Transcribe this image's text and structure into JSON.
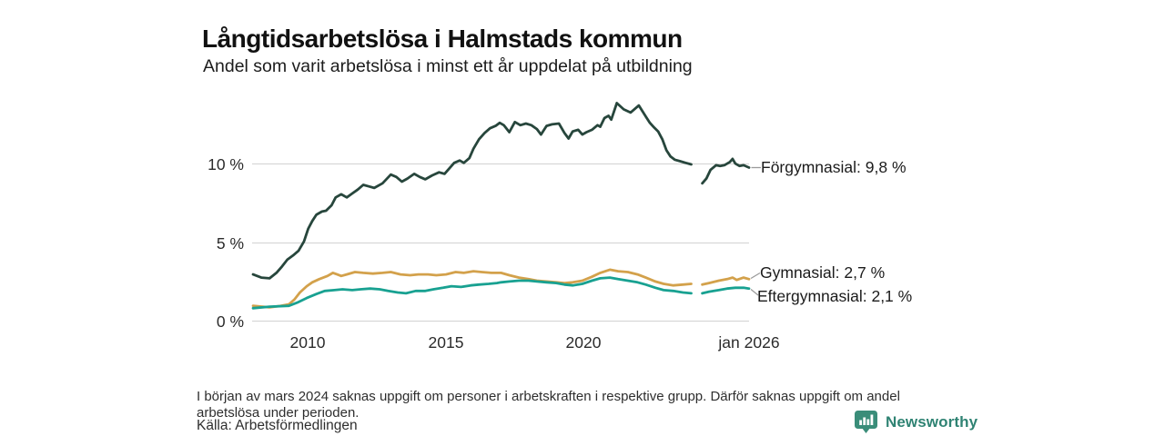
{
  "header": {
    "title": "Långtidsarbetslösa i Halmstads kommun",
    "subtitle": "Andel som varit arbetslösa i minst ett år uppdelat på utbildning"
  },
  "footnote": "I början av mars 2024 saknas uppgift om personer i arbetskraften i respektive grupp. Därför saknas uppgift om andel arbetslösa under perioden.",
  "source": "Källa: Arbetsförmedlingen",
  "brand": {
    "name": "Newsworthy",
    "color": "#2f8373",
    "icon": "bar-chart-bubble-icon"
  },
  "chart_data": {
    "type": "line",
    "title": "Långtidsarbetslösa i Halmstads kommun",
    "subtitle": "Andel som varit arbetslösa i minst ett år uppdelat på utbildning",
    "unit": "%",
    "xlim": [
      2008,
      2026.2
    ],
    "ylim": [
      0,
      14.5
    ],
    "grid": "horizontal-only",
    "legend_position": "end-of-line-labels-right",
    "x_ticks": [
      {
        "v": 2010,
        "label": "2010"
      },
      {
        "v": 2015,
        "label": "2015"
      },
      {
        "v": 2020,
        "label": "2020"
      },
      {
        "v": 2026,
        "label": "jan 2026"
      }
    ],
    "y_ticks": [
      {
        "v": 0,
        "label": "0 %"
      },
      {
        "v": 5,
        "label": "5 %"
      },
      {
        "v": 10,
        "label": "10 %"
      }
    ],
    "data_gap": {
      "from": 2023.9,
      "to": 2024.3,
      "note": "uppgift saknas (mars 2024)"
    },
    "series": [
      {
        "name": "Förgymnasial",
        "end_label": "Förgymnasial: 9,8 %",
        "end_value_pct": 9.8,
        "color": "#27463c",
        "segments": [
          [
            [
              2008.0,
              3.0
            ],
            [
              2008.3,
              2.8
            ],
            [
              2008.6,
              2.75
            ],
            [
              2008.85,
              3.1
            ],
            [
              2009.05,
              3.5
            ],
            [
              2009.25,
              3.95
            ],
            [
              2009.45,
              4.2
            ],
            [
              2009.65,
              4.5
            ],
            [
              2009.85,
              5.1
            ],
            [
              2010.0,
              5.9
            ],
            [
              2010.15,
              6.4
            ],
            [
              2010.3,
              6.8
            ],
            [
              2010.5,
              7.0
            ],
            [
              2010.65,
              7.05
            ],
            [
              2010.85,
              7.4
            ],
            [
              2011.0,
              7.9
            ],
            [
              2011.2,
              8.1
            ],
            [
              2011.4,
              7.9
            ],
            [
              2011.6,
              8.15
            ],
            [
              2011.8,
              8.4
            ],
            [
              2012.0,
              8.7
            ],
            [
              2012.2,
              8.6
            ],
            [
              2012.4,
              8.5
            ],
            [
              2012.7,
              8.8
            ],
            [
              2013.0,
              9.35
            ],
            [
              2013.2,
              9.2
            ],
            [
              2013.4,
              8.9
            ],
            [
              2013.6,
              9.1
            ],
            [
              2013.85,
              9.4
            ],
            [
              2014.05,
              9.2
            ],
            [
              2014.25,
              9.05
            ],
            [
              2014.5,
              9.3
            ],
            [
              2014.75,
              9.5
            ],
            [
              2014.95,
              9.4
            ],
            [
              2015.1,
              9.7
            ],
            [
              2015.3,
              10.1
            ],
            [
              2015.5,
              10.25
            ],
            [
              2015.65,
              10.1
            ],
            [
              2015.85,
              10.4
            ],
            [
              2016.0,
              11.0
            ],
            [
              2016.2,
              11.6
            ],
            [
              2016.4,
              12.0
            ],
            [
              2016.6,
              12.3
            ],
            [
              2016.8,
              12.45
            ],
            [
              2016.95,
              12.65
            ],
            [
              2017.1,
              12.5
            ],
            [
              2017.3,
              12.05
            ],
            [
              2017.5,
              12.7
            ],
            [
              2017.7,
              12.5
            ],
            [
              2017.9,
              12.6
            ],
            [
              2018.1,
              12.5
            ],
            [
              2018.3,
              12.25
            ],
            [
              2018.45,
              11.9
            ],
            [
              2018.65,
              12.45
            ],
            [
              2018.85,
              12.55
            ],
            [
              2019.1,
              12.6
            ],
            [
              2019.3,
              12.0
            ],
            [
              2019.45,
              11.65
            ],
            [
              2019.6,
              12.1
            ],
            [
              2019.8,
              12.2
            ],
            [
              2019.95,
              11.9
            ],
            [
              2020.1,
              12.05
            ],
            [
              2020.3,
              12.2
            ],
            [
              2020.5,
              12.5
            ],
            [
              2020.6,
              12.4
            ],
            [
              2020.75,
              12.95
            ],
            [
              2020.9,
              13.1
            ],
            [
              2021.0,
              12.85
            ],
            [
              2021.2,
              13.9
            ],
            [
              2021.45,
              13.5
            ],
            [
              2021.7,
              13.3
            ],
            [
              2022.0,
              13.75
            ],
            [
              2022.25,
              13.05
            ],
            [
              2022.4,
              12.65
            ],
            [
              2022.55,
              12.35
            ],
            [
              2022.7,
              12.1
            ],
            [
              2022.85,
              11.6
            ],
            [
              2023.0,
              10.9
            ],
            [
              2023.15,
              10.5
            ],
            [
              2023.3,
              10.3
            ],
            [
              2023.5,
              10.2
            ],
            [
              2023.7,
              10.1
            ],
            [
              2023.9,
              10.0
            ]
          ],
          [
            [
              2024.3,
              8.8
            ],
            [
              2024.45,
              9.1
            ],
            [
              2024.6,
              9.65
            ],
            [
              2024.8,
              9.95
            ],
            [
              2024.95,
              9.9
            ],
            [
              2025.1,
              9.95
            ],
            [
              2025.3,
              10.15
            ],
            [
              2025.4,
              10.35
            ],
            [
              2025.5,
              10.05
            ],
            [
              2025.65,
              9.9
            ],
            [
              2025.8,
              9.95
            ],
            [
              2026.0,
              9.8
            ]
          ]
        ]
      },
      {
        "name": "Gymnasial",
        "end_label": "Gymnasial: 2,7 %",
        "end_value_pct": 2.7,
        "color": "#d3a14b",
        "segments": [
          [
            [
              2008.0,
              1.0
            ],
            [
              2008.6,
              0.9
            ],
            [
              2009.0,
              1.0
            ],
            [
              2009.3,
              1.1
            ],
            [
              2009.5,
              1.4
            ],
            [
              2009.7,
              1.85
            ],
            [
              2009.95,
              2.25
            ],
            [
              2010.15,
              2.5
            ],
            [
              2010.4,
              2.7
            ],
            [
              2010.7,
              2.9
            ],
            [
              2010.9,
              3.1
            ],
            [
              2011.05,
              3.0
            ],
            [
              2011.2,
              2.9
            ],
            [
              2011.4,
              3.0
            ],
            [
              2011.7,
              3.15
            ],
            [
              2012.0,
              3.1
            ],
            [
              2012.35,
              3.05
            ],
            [
              2012.7,
              3.1
            ],
            [
              2013.0,
              3.15
            ],
            [
              2013.35,
              3.0
            ],
            [
              2013.7,
              2.95
            ],
            [
              2014.0,
              3.0
            ],
            [
              2014.35,
              3.0
            ],
            [
              2014.65,
              2.95
            ],
            [
              2015.0,
              3.0
            ],
            [
              2015.35,
              3.15
            ],
            [
              2015.65,
              3.1
            ],
            [
              2016.0,
              3.2
            ],
            [
              2016.3,
              3.15
            ],
            [
              2016.65,
              3.1
            ],
            [
              2017.0,
              3.1
            ],
            [
              2017.3,
              2.95
            ],
            [
              2017.65,
              2.8
            ],
            [
              2018.0,
              2.7
            ],
            [
              2018.3,
              2.6
            ],
            [
              2018.65,
              2.55
            ],
            [
              2019.0,
              2.5
            ],
            [
              2019.3,
              2.45
            ],
            [
              2019.6,
              2.5
            ],
            [
              2019.95,
              2.6
            ],
            [
              2020.3,
              2.85
            ],
            [
              2020.6,
              3.1
            ],
            [
              2020.95,
              3.3
            ],
            [
              2021.25,
              3.2
            ],
            [
              2021.6,
              3.15
            ],
            [
              2021.95,
              3.0
            ],
            [
              2022.25,
              2.8
            ],
            [
              2022.6,
              2.55
            ],
            [
              2022.9,
              2.4
            ],
            [
              2023.25,
              2.3
            ],
            [
              2023.6,
              2.35
            ],
            [
              2023.9,
              2.4
            ]
          ],
          [
            [
              2024.3,
              2.35
            ],
            [
              2024.55,
              2.45
            ],
            [
              2024.9,
              2.6
            ],
            [
              2025.2,
              2.7
            ],
            [
              2025.4,
              2.8
            ],
            [
              2025.55,
              2.65
            ],
            [
              2025.8,
              2.8
            ],
            [
              2026.0,
              2.7
            ]
          ]
        ]
      },
      {
        "name": "Eftergymnasial",
        "end_label": "Eftergymnasial: 2,1 %",
        "end_value_pct": 2.1,
        "color": "#18a191",
        "segments": [
          [
            [
              2008.0,
              0.85
            ],
            [
              2008.6,
              0.95
            ],
            [
              2009.3,
              1.0
            ],
            [
              2009.6,
              1.2
            ],
            [
              2009.95,
              1.5
            ],
            [
              2010.3,
              1.75
            ],
            [
              2010.6,
              1.95
            ],
            [
              2010.95,
              2.0
            ],
            [
              2011.25,
              2.05
            ],
            [
              2011.6,
              2.0
            ],
            [
              2011.9,
              2.05
            ],
            [
              2012.25,
              2.1
            ],
            [
              2012.6,
              2.05
            ],
            [
              2012.9,
              1.95
            ],
            [
              2013.25,
              1.85
            ],
            [
              2013.55,
              1.8
            ],
            [
              2013.9,
              1.95
            ],
            [
              2014.25,
              1.95
            ],
            [
              2014.55,
              2.05
            ],
            [
              2014.9,
              2.15
            ],
            [
              2015.2,
              2.25
            ],
            [
              2015.55,
              2.2
            ],
            [
              2015.9,
              2.3
            ],
            [
              2016.2,
              2.35
            ],
            [
              2016.55,
              2.4
            ],
            [
              2016.85,
              2.45
            ],
            [
              2017.0,
              2.5
            ],
            [
              2017.3,
              2.55
            ],
            [
              2017.65,
              2.6
            ],
            [
              2018.0,
              2.6
            ],
            [
              2018.3,
              2.55
            ],
            [
              2018.65,
              2.5
            ],
            [
              2019.0,
              2.45
            ],
            [
              2019.3,
              2.35
            ],
            [
              2019.6,
              2.3
            ],
            [
              2019.95,
              2.4
            ],
            [
              2020.3,
              2.6
            ],
            [
              2020.6,
              2.75
            ],
            [
              2020.95,
              2.8
            ],
            [
              2021.25,
              2.7
            ],
            [
              2021.6,
              2.6
            ],
            [
              2021.95,
              2.5
            ],
            [
              2022.25,
              2.35
            ],
            [
              2022.6,
              2.15
            ],
            [
              2022.9,
              2.0
            ],
            [
              2023.25,
              1.95
            ],
            [
              2023.6,
              1.85
            ],
            [
              2023.9,
              1.8
            ]
          ],
          [
            [
              2024.3,
              1.8
            ],
            [
              2024.55,
              1.9
            ],
            [
              2024.9,
              2.0
            ],
            [
              2025.2,
              2.1
            ],
            [
              2025.5,
              2.15
            ],
            [
              2025.8,
              2.15
            ],
            [
              2026.0,
              2.1
            ]
          ]
        ]
      }
    ]
  }
}
